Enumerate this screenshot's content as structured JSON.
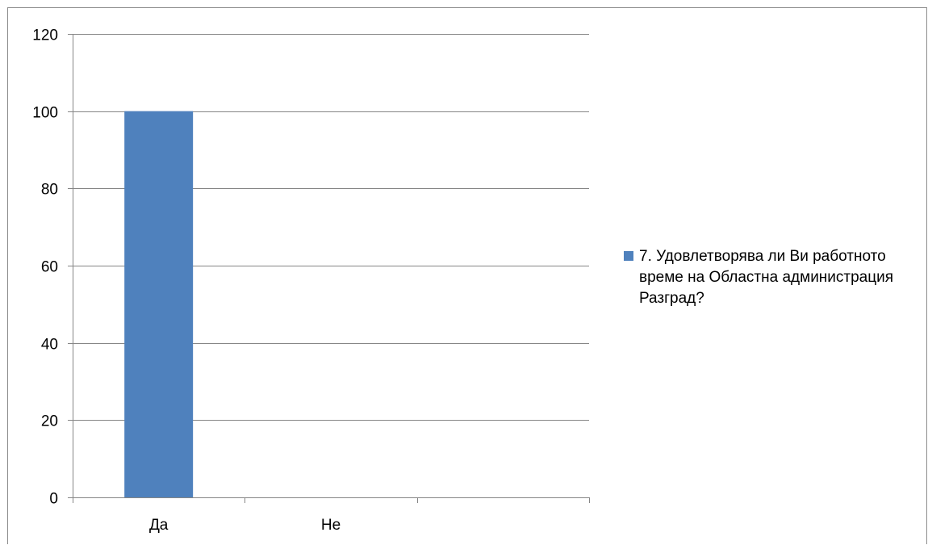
{
  "chart_data": {
    "type": "bar",
    "categories": [
      "Да",
      "Не",
      ""
    ],
    "series": [
      {
        "name": "7. Удовлетворява ли Ви работното време на Областна администрация Разград?",
        "values": [
          100,
          0,
          null
        ],
        "color": "#4f81bd"
      }
    ],
    "ylim": [
      0,
      120
    ],
    "yticks": [
      "0",
      "20",
      "40",
      "60",
      "80",
      "100",
      "120"
    ],
    "grid": true,
    "legend_position": "right"
  }
}
